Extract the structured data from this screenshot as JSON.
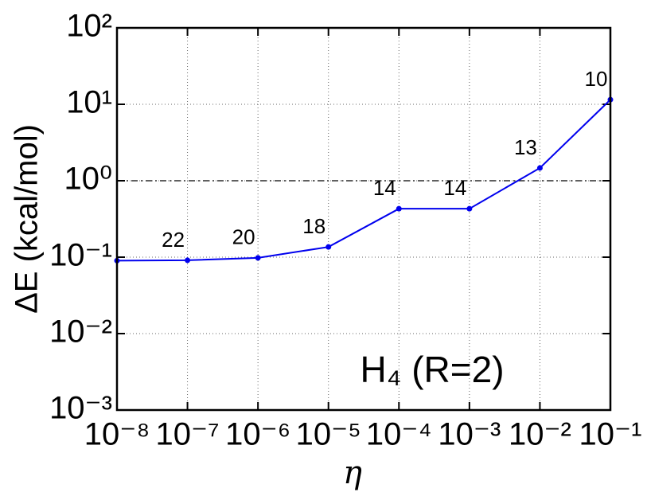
{
  "chart_data": {
    "type": "line",
    "x": [
      1e-08,
      1e-07,
      1e-06,
      1e-05,
      0.0001,
      0.001,
      0.01,
      0.1
    ],
    "values": [
      0.09,
      0.091,
      0.098,
      0.136,
      0.43,
      0.43,
      1.47,
      11.5
    ],
    "point_labels": [
      null,
      22,
      20,
      18,
      14,
      14,
      13,
      10
    ],
    "color": "#0000ee",
    "xlabel": "η",
    "ylabel": "ΔE (kcal/mol)",
    "annotation": "H₄ (R=2)",
    "reference_line": 1,
    "xscale": "log",
    "yscale": "log",
    "grid": true,
    "xlim": [
      1e-08,
      0.1
    ],
    "ylim": [
      0.001,
      100
    ],
    "xticks": [
      {
        "value": 1e-08,
        "label": "10⁻⁸"
      },
      {
        "value": 1e-07,
        "label": "10⁻⁷"
      },
      {
        "value": 1e-06,
        "label": "10⁻⁶"
      },
      {
        "value": 1e-05,
        "label": "10⁻⁵"
      },
      {
        "value": 0.0001,
        "label": "10⁻⁴"
      },
      {
        "value": 0.001,
        "label": "10⁻³"
      },
      {
        "value": 0.01,
        "label": "10⁻²"
      },
      {
        "value": 0.1,
        "label": "10⁻¹"
      }
    ],
    "yticks": [
      {
        "value": 0.001,
        "label": "10⁻³"
      },
      {
        "value": 0.01,
        "label": "10⁻²"
      },
      {
        "value": 0.1,
        "label": "10⁻¹"
      },
      {
        "value": 1,
        "label": "10⁰"
      },
      {
        "value": 10,
        "label": "10¹"
      },
      {
        "value": 100,
        "label": "10²"
      }
    ]
  }
}
